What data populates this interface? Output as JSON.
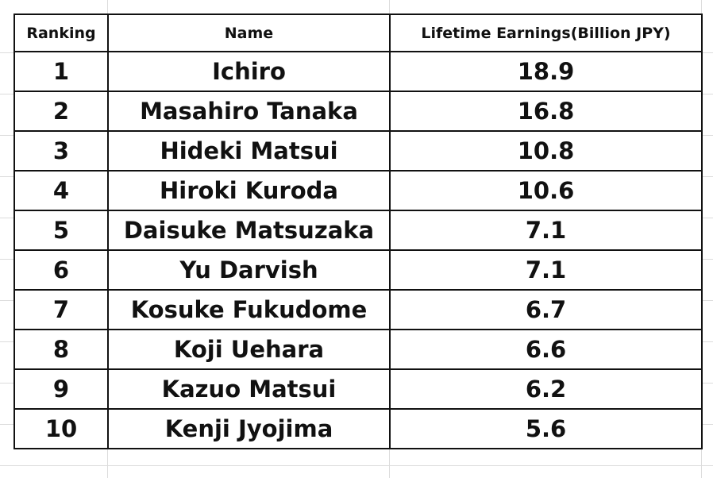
{
  "table": {
    "columns": [
      "Ranking",
      "Name",
      "Lifetime Earnings(Billion JPY)"
    ],
    "rows": [
      [
        1,
        "Ichiro",
        18.9
      ],
      [
        2,
        "Masahiro Tanaka",
        16.8
      ],
      [
        3,
        "Hideki Matsui",
        10.8
      ],
      [
        4,
        "Hiroki Kuroda",
        10.6
      ],
      [
        5,
        "Daisuke Matsuzaka",
        7.1
      ],
      [
        6,
        "Yu Darvish",
        7.1
      ],
      [
        7,
        "Kosuke Fukudome",
        6.7
      ],
      [
        8,
        "Koji Uehara",
        6.6
      ],
      [
        9,
        "Kazuo Matsui",
        6.2
      ],
      [
        10,
        "Kenji Jyojima",
        5.6
      ]
    ]
  }
}
